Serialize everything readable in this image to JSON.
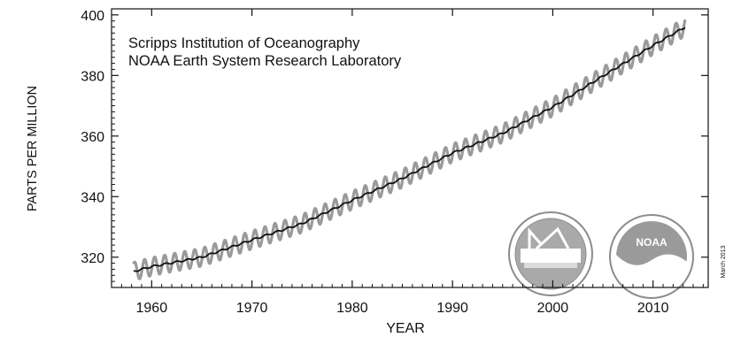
{
  "chart_data": {
    "type": "line",
    "title": "",
    "annotations": [
      "Scripps Institution of Oceanography",
      "NOAA Earth System Research Laboratory"
    ],
    "side_note": "March 2013",
    "xlabel": "YEAR",
    "ylabel": "PARTS PER MILLION",
    "xlim": [
      1956,
      2015.5
    ],
    "ylim": [
      310,
      402
    ],
    "x_ticks": [
      1960,
      1970,
      1980,
      1990,
      2000,
      2010
    ],
    "y_ticks": [
      320,
      340,
      360,
      380,
      400
    ],
    "grid": false,
    "series": [
      {
        "name": "",
        "style": "monthly, seasonal cycle",
        "color": "#9a9a9a",
        "seasonal_amplitude_ppm": 3.0,
        "x": [
          1958.2,
          1960,
          1965,
          1970,
          1975,
          1980,
          1985,
          1990,
          1995,
          2000,
          2005,
          2010,
          2013.2
        ],
        "y": [
          315.3,
          316.9,
          320.0,
          325.7,
          331.1,
          338.8,
          346.0,
          354.4,
          360.9,
          369.6,
          379.8,
          389.9,
          396.0
        ]
      },
      {
        "name": "",
        "style": "seasonally adjusted trend",
        "color": "#111111",
        "x": [
          1958.2,
          1960,
          1965,
          1970,
          1975,
          1980,
          1985,
          1990,
          1995,
          2000,
          2005,
          2010,
          2013.2
        ],
        "y": [
          315.3,
          316.9,
          320.0,
          325.7,
          331.1,
          338.8,
          346.0,
          354.4,
          360.9,
          369.6,
          379.8,
          389.9,
          396.0
        ]
      }
    ]
  },
  "logos": [
    {
      "name": "scripps-seal-icon",
      "color": "#8c8c8c"
    },
    {
      "name": "noaa-logo-icon",
      "color": "#8c8c8c",
      "text": "NOAA"
    }
  ]
}
